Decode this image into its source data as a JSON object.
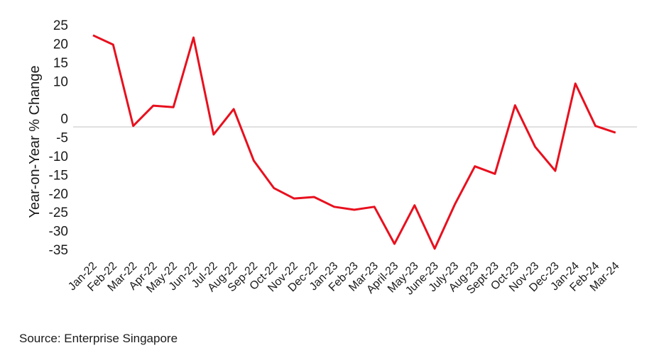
{
  "chart_data": {
    "type": "line",
    "ylabel": "Year-on-Year % Change",
    "xlabel": "",
    "ylim": [
      -35,
      25
    ],
    "yticks": [
      25,
      20,
      15,
      10,
      0,
      -5,
      -10,
      -15,
      -20,
      -25,
      -30,
      -35
    ],
    "grid": false,
    "series_color": "#e8101e",
    "zero_line_color": "#c8c8c8",
    "categories": [
      "Jan-22",
      "Feb-22",
      "Mar-22",
      "Apr-22",
      "May-22",
      "Jun-22",
      "Jul-22",
      "Aug-22",
      "Sep-22",
      "Oct-22",
      "Nov-22",
      "Dec-22",
      "Jan-23",
      "Feb-23",
      "Mar-23",
      "April-23",
      "May-23",
      "June-23",
      "July-23",
      "Aug-23",
      "Sept-23",
      "Oct-23",
      "Nov-23",
      "Dec-23",
      "Jan-24",
      "Feb-24",
      "Mar-24"
    ],
    "series": [
      {
        "values": [
          22.2,
          19.7,
          -2.0,
          3.4,
          3.0,
          21.6,
          -4.3,
          2.5,
          -11.3,
          -18.6,
          -21.4,
          -21.0,
          -23.6,
          -24.4,
          -23.6,
          -33.5,
          -23.2,
          -34.8,
          -23.0,
          -12.8,
          -14.8,
          3.5,
          -7.6,
          -14.0,
          9.3,
          -2.0,
          -3.8
        ]
      }
    ]
  },
  "source": "Source: Enterprise Singapore"
}
